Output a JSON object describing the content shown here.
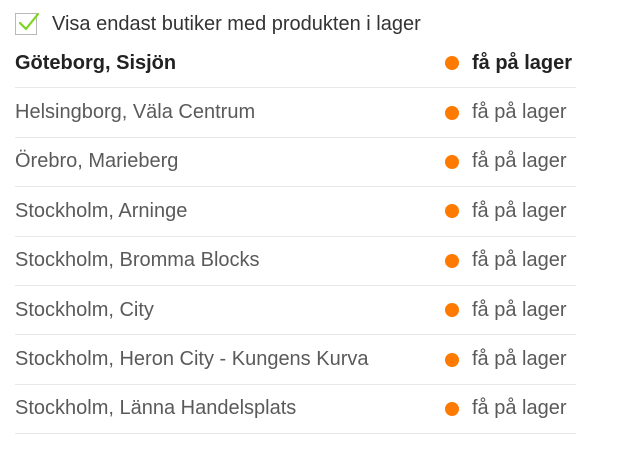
{
  "filter": {
    "label": "Visa endast butiker med produkten i lager",
    "checked": true,
    "check_color": "#7ed321",
    "icon": "checkmark-icon"
  },
  "stock_dot_color": "#ff7a00",
  "stores": [
    {
      "name": "Göteborg, Sisjön",
      "stock": "få på lager",
      "selected": true
    },
    {
      "name": "Helsingborg, Väla Centrum",
      "stock": "få på lager",
      "selected": false
    },
    {
      "name": "Örebro, Marieberg",
      "stock": "få på lager",
      "selected": false
    },
    {
      "name": "Stockholm, Arninge",
      "stock": "få på lager",
      "selected": false
    },
    {
      "name": "Stockholm, Bromma Blocks",
      "stock": "få på lager",
      "selected": false
    },
    {
      "name": "Stockholm, City",
      "stock": "få på lager",
      "selected": false
    },
    {
      "name": "Stockholm, Heron City - Kungens Kurva",
      "stock": "få på lager",
      "selected": false
    },
    {
      "name": "Stockholm, Länna Handelsplats",
      "stock": "få på lager",
      "selected": false
    }
  ]
}
